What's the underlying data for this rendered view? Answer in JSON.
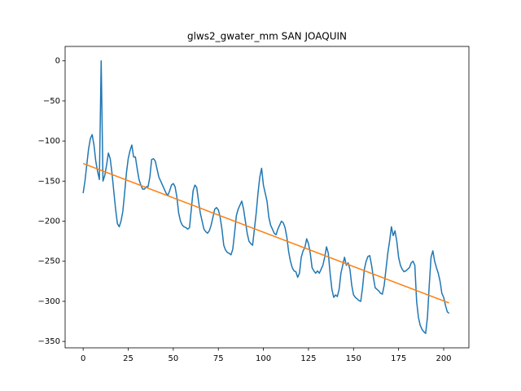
{
  "chart_data": {
    "type": "line",
    "title": "glws2_gwater_mm SAN JOAQUIN",
    "xlim": [
      -10,
      214
    ],
    "ylim": [
      -358,
      18
    ],
    "xticks": [
      0,
      25,
      50,
      75,
      100,
      125,
      150,
      175,
      200
    ],
    "yticks": [
      0,
      {
        "value": -50,
        "label": "−50"
      },
      {
        "value": -100,
        "label": "−100"
      },
      {
        "value": -150,
        "label": "−150"
      },
      {
        "value": -200,
        "label": "−200"
      },
      {
        "value": -250,
        "label": "−250"
      },
      {
        "value": -300,
        "label": "−300"
      },
      {
        "value": -350,
        "label": "−350"
      }
    ],
    "series": [
      {
        "color": "#1f77b4",
        "x": [
          0,
          1,
          2,
          3,
          4,
          5,
          6,
          7,
          8,
          9,
          10,
          11,
          12,
          13,
          14,
          15,
          16,
          17,
          18,
          19,
          20,
          21,
          22,
          23,
          24,
          25,
          26,
          27,
          28,
          29,
          30,
          31,
          32,
          33,
          34,
          35,
          36,
          37,
          38,
          39,
          40,
          41,
          42,
          43,
          44,
          45,
          46,
          47,
          48,
          49,
          50,
          51,
          52,
          53,
          54,
          55,
          56,
          57,
          58,
          59,
          60,
          61,
          62,
          63,
          64,
          65,
          66,
          67,
          68,
          69,
          70,
          71,
          72,
          73,
          74,
          75,
          76,
          77,
          78,
          79,
          80,
          81,
          82,
          83,
          84,
          85,
          86,
          87,
          88,
          89,
          90,
          91,
          92,
          93,
          94,
          95,
          96,
          97,
          98,
          99,
          100,
          101,
          102,
          103,
          104,
          105,
          106,
          107,
          108,
          109,
          110,
          111,
          112,
          113,
          114,
          115,
          116,
          117,
          118,
          119,
          120,
          121,
          122,
          123,
          124,
          125,
          126,
          127,
          128,
          129,
          130,
          131,
          132,
          133,
          134,
          135,
          136,
          137,
          138,
          139,
          140,
          141,
          142,
          143,
          144,
          145,
          146,
          147,
          148,
          149,
          150,
          151,
          152,
          153,
          154,
          155,
          156,
          157,
          158,
          159,
          160,
          161,
          162,
          163,
          164,
          165,
          166,
          167,
          168,
          169,
          170,
          171,
          172,
          173,
          174,
          175,
          176,
          177,
          178,
          179,
          180,
          181,
          182,
          183,
          184,
          185,
          186,
          187,
          188,
          189,
          190,
          191,
          192,
          193,
          194,
          195,
          196,
          197,
          198,
          199,
          200,
          201,
          202,
          203
        ],
        "values": [
          -165,
          -150,
          -130,
          -110,
          -97,
          -92,
          -105,
          -125,
          -138,
          -148,
          0,
          -150,
          -143,
          -130,
          -115,
          -122,
          -140,
          -163,
          -185,
          -203,
          -207,
          -200,
          -188,
          -165,
          -140,
          -122,
          -112,
          -105,
          -120,
          -120,
          -135,
          -148,
          -155,
          -160,
          -160,
          -157,
          -157,
          -145,
          -123,
          -122,
          -125,
          -135,
          -145,
          -150,
          -155,
          -160,
          -165,
          -168,
          -162,
          -155,
          -153,
          -157,
          -170,
          -190,
          -200,
          -205,
          -207,
          -208,
          -210,
          -208,
          -185,
          -162,
          -155,
          -158,
          -175,
          -190,
          -200,
          -210,
          -213,
          -215,
          -212,
          -205,
          -195,
          -185,
          -183,
          -186,
          -195,
          -210,
          -230,
          -236,
          -239,
          -240,
          -242,
          -235,
          -215,
          -193,
          -185,
          -180,
          -175,
          -185,
          -200,
          -215,
          -225,
          -228,
          -230,
          -210,
          -190,
          -165,
          -145,
          -134,
          -155,
          -165,
          -175,
          -195,
          -205,
          -210,
          -215,
          -217,
          -210,
          -205,
          -200,
          -202,
          -208,
          -220,
          -238,
          -250,
          -258,
          -262,
          -263,
          -270,
          -265,
          -245,
          -237,
          -233,
          -222,
          -228,
          -240,
          -258,
          -262,
          -265,
          -262,
          -265,
          -260,
          -255,
          -245,
          -232,
          -240,
          -265,
          -285,
          -295,
          -292,
          -294,
          -285,
          -265,
          -255,
          -245,
          -255,
          -252,
          -260,
          -280,
          -292,
          -295,
          -297,
          -299,
          -300,
          -283,
          -260,
          -250,
          -244,
          -243,
          -255,
          -270,
          -283,
          -285,
          -287,
          -290,
          -291,
          -280,
          -260,
          -240,
          -225,
          -207,
          -218,
          -212,
          -225,
          -245,
          -255,
          -260,
          -263,
          -262,
          -260,
          -258,
          -252,
          -250,
          -255,
          -300,
          -320,
          -330,
          -335,
          -338,
          -340,
          -320,
          -280,
          -245,
          -237,
          -250,
          -258,
          -265,
          -275,
          -290,
          -295,
          -305,
          -313,
          -315
        ]
      },
      {
        "color": "#ff7f0e",
        "x": [
          0,
          203
        ],
        "values": [
          -128,
          -302
        ]
      }
    ]
  }
}
